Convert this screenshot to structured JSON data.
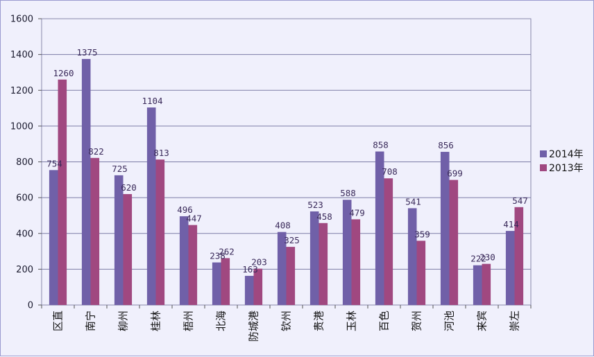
{
  "chart_data": {
    "type": "bar",
    "title": "",
    "xlabel": "",
    "ylabel": "",
    "categories": [
      "区直",
      "南宁",
      "柳州",
      "桂林",
      "梧州",
      "北海",
      "防城港",
      "钦州",
      "贵港",
      "玉林",
      "百色",
      "贺州",
      "河池",
      "来宾",
      "崇左"
    ],
    "series": [
      {
        "name": "2014年",
        "color": "#7060a8",
        "values": [
          754,
          1375,
          725,
          1104,
          496,
          238,
          163,
          408,
          523,
          588,
          858,
          541,
          856,
          222,
          414
        ]
      },
      {
        "name": "2013年",
        "color": "#a04880",
        "values": [
          1260,
          822,
          620,
          813,
          447,
          262,
          203,
          325,
          458,
          479,
          708,
          359,
          699,
          230,
          547
        ]
      }
    ],
    "ylim": [
      0,
      1600
    ],
    "yticks": [
      0,
      200,
      400,
      600,
      800,
      1000,
      1200,
      1400,
      1600
    ],
    "grid": true,
    "legend": "right"
  }
}
